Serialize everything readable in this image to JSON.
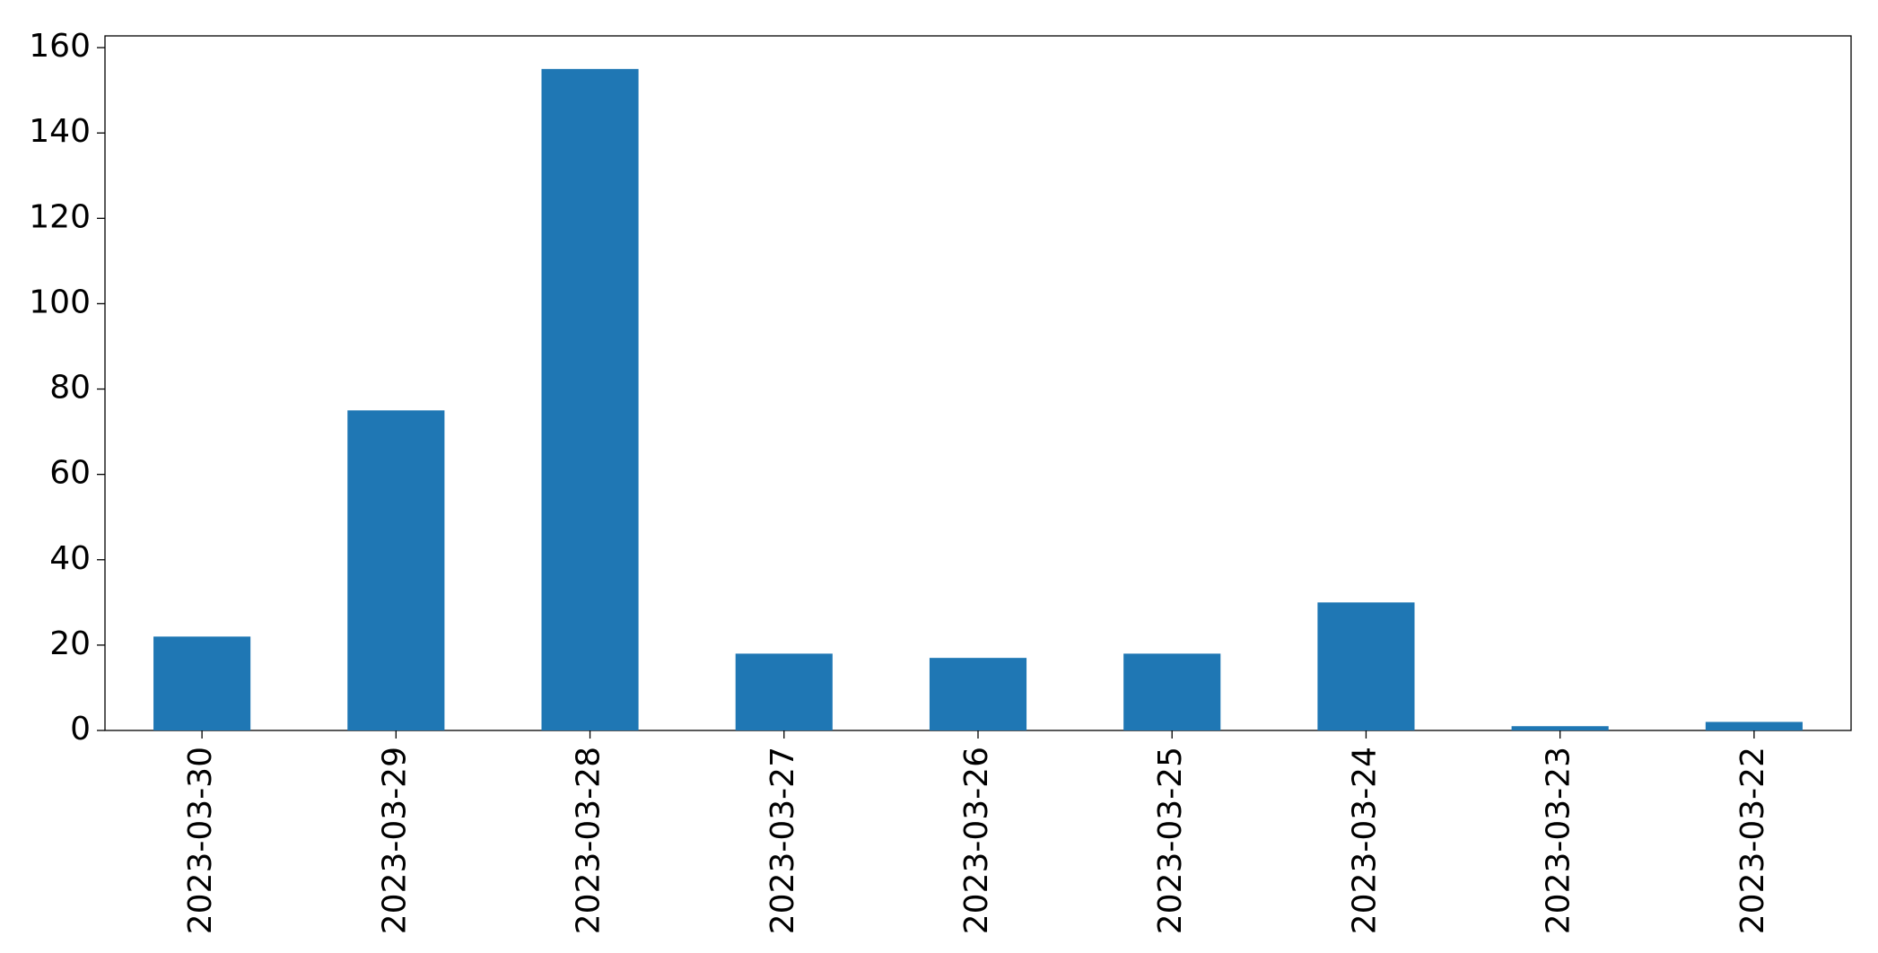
{
  "chart_data": {
    "type": "bar",
    "categories": [
      "2023-03-30",
      "2023-03-29",
      "2023-03-28",
      "2023-03-27",
      "2023-03-26",
      "2023-03-25",
      "2023-03-24",
      "2023-03-23",
      "2023-03-22"
    ],
    "values": [
      22,
      75,
      155,
      18,
      17,
      18,
      30,
      1,
      2
    ],
    "color": "#1f77b4",
    "ylim": [
      0,
      162.75
    ],
    "yticks": [
      0,
      20,
      40,
      60,
      80,
      100,
      120,
      140,
      160
    ],
    "grid": false
  }
}
